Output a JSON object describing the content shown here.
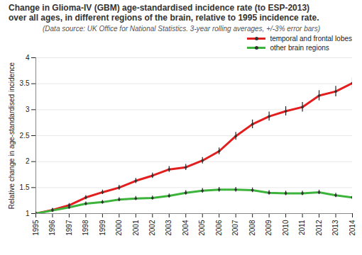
{
  "chart_data": {
    "type": "line",
    "title": "Change in Glioma-IV (GBM) age-standardised incidence rate (to ESP-2013) over all ages, in different regions of the brain, relative to 1995 incidence rate.",
    "subtitle": "(Data source: UK Office for National Statistics. 3-year rolling averages, +/-3% error bars)",
    "y_label": "Relative change in age-standardised incidence",
    "x": [
      1995,
      1996,
      1997,
      1998,
      1999,
      2000,
      2001,
      2002,
      2003,
      2004,
      2005,
      2006,
      2007,
      2008,
      2009,
      2010,
      2011,
      2012,
      2013,
      2014
    ],
    "series": [
      {
        "name": "temporal and frontal lobes",
        "color": "#e31e1e",
        "values": [
          1.0,
          1.07,
          1.16,
          1.31,
          1.41,
          1.5,
          1.63,
          1.73,
          1.85,
          1.89,
          2.02,
          2.2,
          2.49,
          2.72,
          2.87,
          2.97,
          3.05,
          3.27,
          3.35,
          3.51
        ],
        "errors": [
          0.03,
          0.032,
          0.035,
          0.039,
          0.042,
          0.045,
          0.049,
          0.052,
          0.056,
          0.057,
          0.061,
          0.066,
          0.075,
          0.082,
          0.086,
          0.089,
          0.092,
          0.098,
          0.101,
          0.105
        ]
      },
      {
        "name": "other brain regions",
        "color": "#3cb43c",
        "values": [
          1.0,
          1.06,
          1.12,
          1.19,
          1.22,
          1.27,
          1.29,
          1.3,
          1.34,
          1.4,
          1.44,
          1.46,
          1.46,
          1.45,
          1.4,
          1.39,
          1.39,
          1.41,
          1.35,
          1.31
        ],
        "errors": [
          0.03,
          0.032,
          0.034,
          0.036,
          0.037,
          0.038,
          0.039,
          0.039,
          0.04,
          0.042,
          0.043,
          0.044,
          0.044,
          0.044,
          0.042,
          0.042,
          0.042,
          0.042,
          0.041,
          0.039
        ]
      }
    ],
    "xlim": [
      1995,
      2014
    ],
    "xticks": [
      1995,
      1996,
      1997,
      1998,
      1999,
      2000,
      2001,
      2002,
      2003,
      2004,
      2005,
      2006,
      2007,
      2008,
      2009,
      2010,
      2011,
      2012,
      2013,
      2014
    ],
    "ylim": [
      1,
      4
    ],
    "yticks": [
      1,
      1.5,
      2,
      2.5,
      3,
      3.5,
      4
    ],
    "grid": true,
    "legend": "top-right",
    "marker": "circle"
  }
}
